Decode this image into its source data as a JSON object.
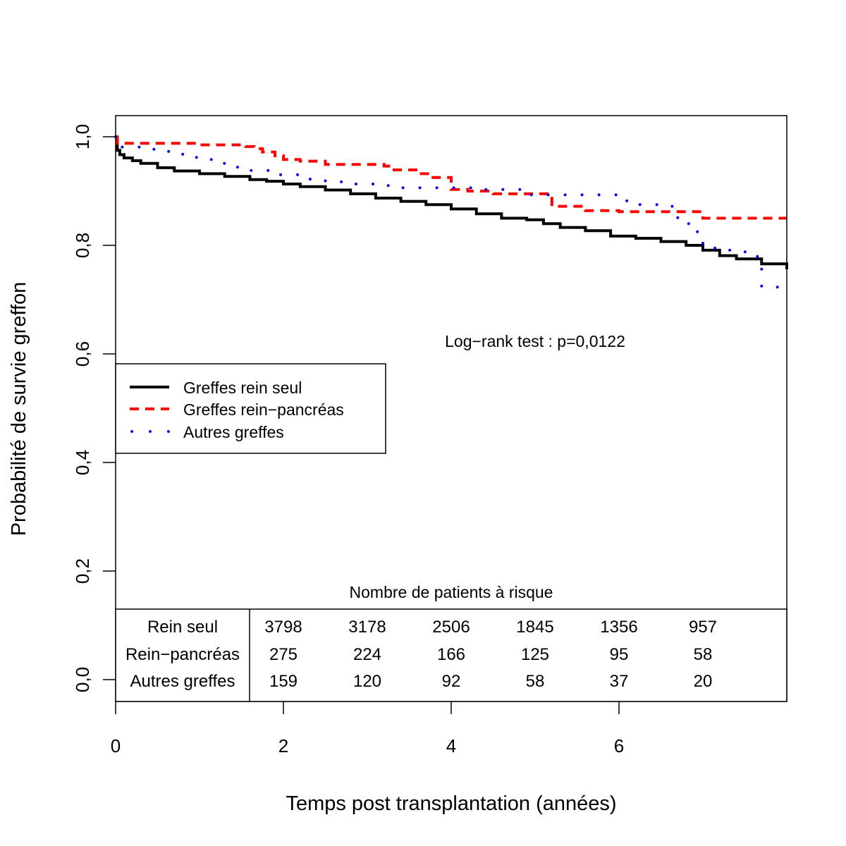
{
  "chart_data": {
    "type": "line",
    "subtype": "kaplan-meier step curves",
    "title": "",
    "xlabel": "Temps post transplantation (années)",
    "ylabel": "Probabilité de survie greffon",
    "xlim": [
      0,
      8
    ],
    "ylim": [
      0,
      1.04
    ],
    "x_ticks": [
      0,
      2,
      4,
      6
    ],
    "x_tick_labels": [
      "0",
      "2",
      "4",
      "6"
    ],
    "y_ticks": [
      0,
      0.2,
      0.4,
      0.6,
      0.8,
      1.0
    ],
    "y_tick_labels": [
      "0,0",
      "0,2",
      "0,4",
      "0,6",
      "0,8",
      "1,0"
    ],
    "grid": false,
    "legend_position": "center-left",
    "annotation": "Log−rank test : p=0,0122",
    "series": [
      {
        "name": "Greffes rein seul",
        "color": "#000000",
        "style": "solid",
        "x": [
          0,
          0.02,
          0.05,
          0.1,
          0.2,
          0.3,
          0.5,
          0.7,
          1.0,
          1.3,
          1.6,
          1.8,
          2.0,
          2.2,
          2.5,
          2.8,
          3.1,
          3.4,
          3.7,
          4.0,
          4.3,
          4.6,
          4.9,
          5.1,
          5.3,
          5.6,
          5.9,
          6.2,
          6.5,
          6.8,
          7.0,
          7.2,
          7.4,
          7.7,
          8.0
        ],
        "y": [
          1.0,
          0.975,
          0.967,
          0.961,
          0.956,
          0.951,
          0.943,
          0.937,
          0.932,
          0.927,
          0.921,
          0.918,
          0.913,
          0.908,
          0.902,
          0.895,
          0.887,
          0.881,
          0.875,
          0.867,
          0.858,
          0.85,
          0.847,
          0.84,
          0.833,
          0.827,
          0.817,
          0.813,
          0.807,
          0.8,
          0.791,
          0.781,
          0.775,
          0.766,
          0.756
        ]
      },
      {
        "name": "Greffes rein−pancréas",
        "color": "#ff0000",
        "style": "dashed",
        "x": [
          0,
          0.02,
          1.0,
          1.55,
          1.65,
          1.75,
          1.9,
          2.0,
          2.2,
          2.5,
          3.2,
          3.3,
          3.6,
          3.75,
          4.0,
          4.2,
          4.5,
          4.9,
          5.2,
          5.6,
          6.0,
          6.5,
          7.0,
          8.0
        ],
        "y": [
          1.0,
          0.988,
          0.985,
          0.982,
          0.978,
          0.972,
          0.965,
          0.958,
          0.955,
          0.949,
          0.946,
          0.939,
          0.932,
          0.925,
          0.903,
          0.9,
          0.895,
          0.895,
          0.872,
          0.864,
          0.862,
          0.862,
          0.85,
          0.85
        ]
      },
      {
        "name": "Autres greffes",
        "color": "#0000ff",
        "style": "dotted",
        "x": [
          0,
          0.02,
          0.3,
          0.6,
          0.8,
          1.0,
          1.2,
          1.4,
          1.6,
          1.9,
          2.2,
          2.5,
          2.8,
          3.1,
          3.4,
          3.7,
          4.0,
          4.4,
          4.9,
          5.3,
          5.8,
          6.0,
          6.2,
          6.5,
          6.7,
          6.85,
          7.0,
          7.2,
          7.5,
          7.65,
          7.7,
          8.0
        ],
        "y": [
          1.0,
          0.981,
          0.977,
          0.973,
          0.962,
          0.958,
          0.951,
          0.944,
          0.938,
          0.93,
          0.922,
          0.917,
          0.913,
          0.91,
          0.906,
          0.906,
          0.906,
          0.903,
          0.893,
          0.893,
          0.893,
          0.882,
          0.875,
          0.872,
          0.84,
          0.825,
          0.795,
          0.791,
          0.788,
          0.772,
          0.723,
          0.723
        ]
      }
    ],
    "risk_table": {
      "title": "Nombre de patients à risque",
      "time_points": [
        2,
        3,
        4,
        5,
        6,
        7
      ],
      "rows": [
        {
          "label": "Rein seul",
          "values": [
            "3798",
            "3178",
            "2506",
            "1845",
            "1356",
            "957"
          ]
        },
        {
          "label": "Rein−pancréas",
          "values": [
            "275",
            "224",
            "166",
            "125",
            "95",
            "58"
          ]
        },
        {
          "label": "Autres greffes",
          "values": [
            "159",
            "120",
            "92",
            "58",
            "37",
            "20"
          ]
        }
      ]
    }
  }
}
